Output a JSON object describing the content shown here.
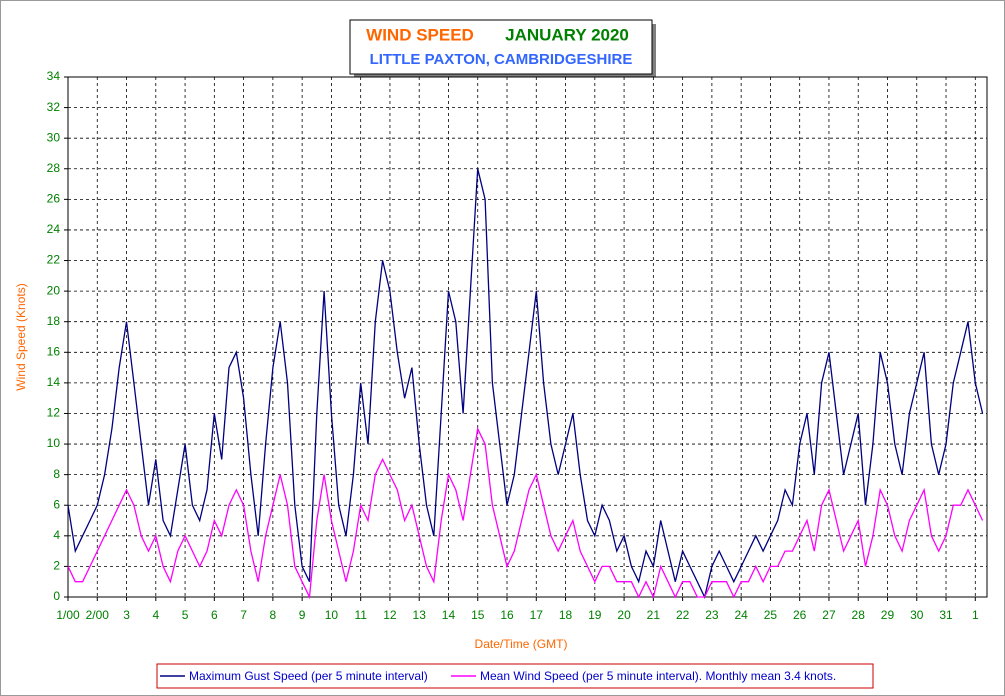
{
  "chart_data": {
    "type": "line",
    "title": "WIND SPEED",
    "period": "JANUARY 2020",
    "subtitle": "LITTLE PAXTON, CAMBRIDGESHIRE",
    "xlabel": "Date/Time (GMT)",
    "ylabel": "Wind Speed (Knots)",
    "grid": true,
    "legend": "bottom",
    "xlim": [
      0,
      31.4
    ],
    "ylim": [
      0,
      34
    ],
    "yticks": [
      0,
      2,
      4,
      6,
      8,
      10,
      12,
      14,
      16,
      18,
      20,
      22,
      24,
      26,
      28,
      30,
      32,
      34
    ],
    "xticks": [
      {
        "value": 0,
        "label": "1/00"
      },
      {
        "value": 1,
        "label": "2/00"
      },
      {
        "value": 2,
        "label": "3"
      },
      {
        "value": 3,
        "label": "4"
      },
      {
        "value": 4,
        "label": "5"
      },
      {
        "value": 5,
        "label": "6"
      },
      {
        "value": 6,
        "label": "7"
      },
      {
        "value": 7,
        "label": "8"
      },
      {
        "value": 8,
        "label": "9"
      },
      {
        "value": 9,
        "label": "10"
      },
      {
        "value": 10,
        "label": "11"
      },
      {
        "value": 11,
        "label": "12"
      },
      {
        "value": 12,
        "label": "13"
      },
      {
        "value": 13,
        "label": "14"
      },
      {
        "value": 14,
        "label": "15"
      },
      {
        "value": 15,
        "label": "16"
      },
      {
        "value": 16,
        "label": "17"
      },
      {
        "value": 17,
        "label": "18"
      },
      {
        "value": 18,
        "label": "19"
      },
      {
        "value": 19,
        "label": "20"
      },
      {
        "value": 20,
        "label": "21"
      },
      {
        "value": 21,
        "label": "22"
      },
      {
        "value": 22,
        "label": "23"
      },
      {
        "value": 23,
        "label": "24"
      },
      {
        "value": 24,
        "label": "25"
      },
      {
        "value": 25,
        "label": "26"
      },
      {
        "value": 26,
        "label": "27"
      },
      {
        "value": 27,
        "label": "28"
      },
      {
        "value": 28,
        "label": "29"
      },
      {
        "value": 29,
        "label": "30"
      },
      {
        "value": 30,
        "label": "31"
      },
      {
        "value": 31,
        "label": "1"
      }
    ],
    "x": [
      0,
      0.25,
      0.5,
      0.75,
      1,
      1.25,
      1.5,
      1.75,
      2,
      2.25,
      2.5,
      2.75,
      3,
      3.25,
      3.5,
      3.75,
      4,
      4.25,
      4.5,
      4.75,
      5,
      5.25,
      5.5,
      5.75,
      6,
      6.25,
      6.5,
      6.75,
      7,
      7.25,
      7.5,
      7.75,
      8,
      8.25,
      8.5,
      8.75,
      9,
      9.25,
      9.5,
      9.75,
      10,
      10.25,
      10.5,
      10.75,
      11,
      11.25,
      11.5,
      11.75,
      12,
      12.25,
      12.5,
      12.75,
      13,
      13.25,
      13.5,
      13.75,
      14,
      14.25,
      14.5,
      14.75,
      15,
      15.25,
      15.5,
      15.75,
      16,
      16.25,
      16.5,
      16.75,
      17,
      17.25,
      17.5,
      17.75,
      18,
      18.25,
      18.5,
      18.75,
      19,
      19.25,
      19.5,
      19.75,
      20,
      20.25,
      20.5,
      20.75,
      21,
      21.25,
      21.5,
      21.75,
      22,
      22.25,
      22.5,
      22.75,
      23,
      23.25,
      23.5,
      23.75,
      24,
      24.25,
      24.5,
      24.75,
      25,
      25.25,
      25.5,
      25.75,
      26,
      26.25,
      26.5,
      26.75,
      27,
      27.25,
      27.5,
      27.75,
      28,
      28.25,
      28.5,
      28.75,
      29,
      29.25,
      29.5,
      29.75,
      30,
      30.25,
      30.5,
      30.75,
      31,
      31.25
    ],
    "series": [
      {
        "name": "Maximum Gust Speed (per 5 minute interval)",
        "color": "#000080",
        "values": [
          6,
          3,
          4,
          5,
          6,
          8,
          11,
          15,
          18,
          14,
          10,
          6,
          9,
          5,
          4,
          7,
          10,
          6,
          5,
          7,
          12,
          9,
          15,
          16,
          13,
          8,
          4,
          10,
          15,
          18,
          14,
          6,
          2,
          1,
          12,
          20,
          12,
          6,
          4,
          8,
          14,
          10,
          18,
          22,
          20,
          16,
          13,
          15,
          10,
          6,
          4,
          12,
          20,
          18,
          12,
          20,
          28,
          26,
          14,
          10,
          6,
          8,
          12,
          16,
          20,
          14,
          10,
          8,
          10,
          12,
          8,
          5,
          4,
          6,
          5,
          3,
          4,
          2,
          1,
          3,
          2,
          5,
          3,
          1,
          3,
          2,
          1,
          0,
          2,
          3,
          2,
          1,
          2,
          3,
          4,
          3,
          4,
          5,
          7,
          6,
          10,
          12,
          8,
          14,
          16,
          12,
          8,
          10,
          12,
          6,
          10,
          16,
          14,
          10,
          8,
          12,
          14,
          16,
          10,
          8,
          10,
          14,
          16,
          18,
          14,
          12
        ]
      },
      {
        "name": "Mean Wind Speed (per 5 minute interval). Monthly mean 3.4 knots.",
        "color": "#ff00ff",
        "values": [
          2,
          1,
          1,
          2,
          3,
          4,
          5,
          6,
          7,
          6,
          4,
          3,
          4,
          2,
          1,
          3,
          4,
          3,
          2,
          3,
          5,
          4,
          6,
          7,
          6,
          3,
          1,
          4,
          6,
          8,
          6,
          2,
          1,
          0,
          5,
          8,
          5,
          3,
          1,
          3,
          6,
          5,
          8,
          9,
          8,
          7,
          5,
          6,
          4,
          2,
          1,
          5,
          8,
          7,
          5,
          8,
          11,
          10,
          6,
          4,
          2,
          3,
          5,
          7,
          8,
          6,
          4,
          3,
          4,
          5,
          3,
          2,
          1,
          2,
          2,
          1,
          1,
          1,
          0,
          1,
          0,
          2,
          1,
          0,
          1,
          1,
          0,
          0,
          1,
          1,
          1,
          0,
          1,
          1,
          2,
          1,
          2,
          2,
          3,
          3,
          4,
          5,
          3,
          6,
          7,
          5,
          3,
          4,
          5,
          2,
          4,
          7,
          6,
          4,
          3,
          5,
          6,
          7,
          4,
          3,
          4,
          6,
          6,
          7,
          6,
          5
        ]
      }
    ]
  }
}
